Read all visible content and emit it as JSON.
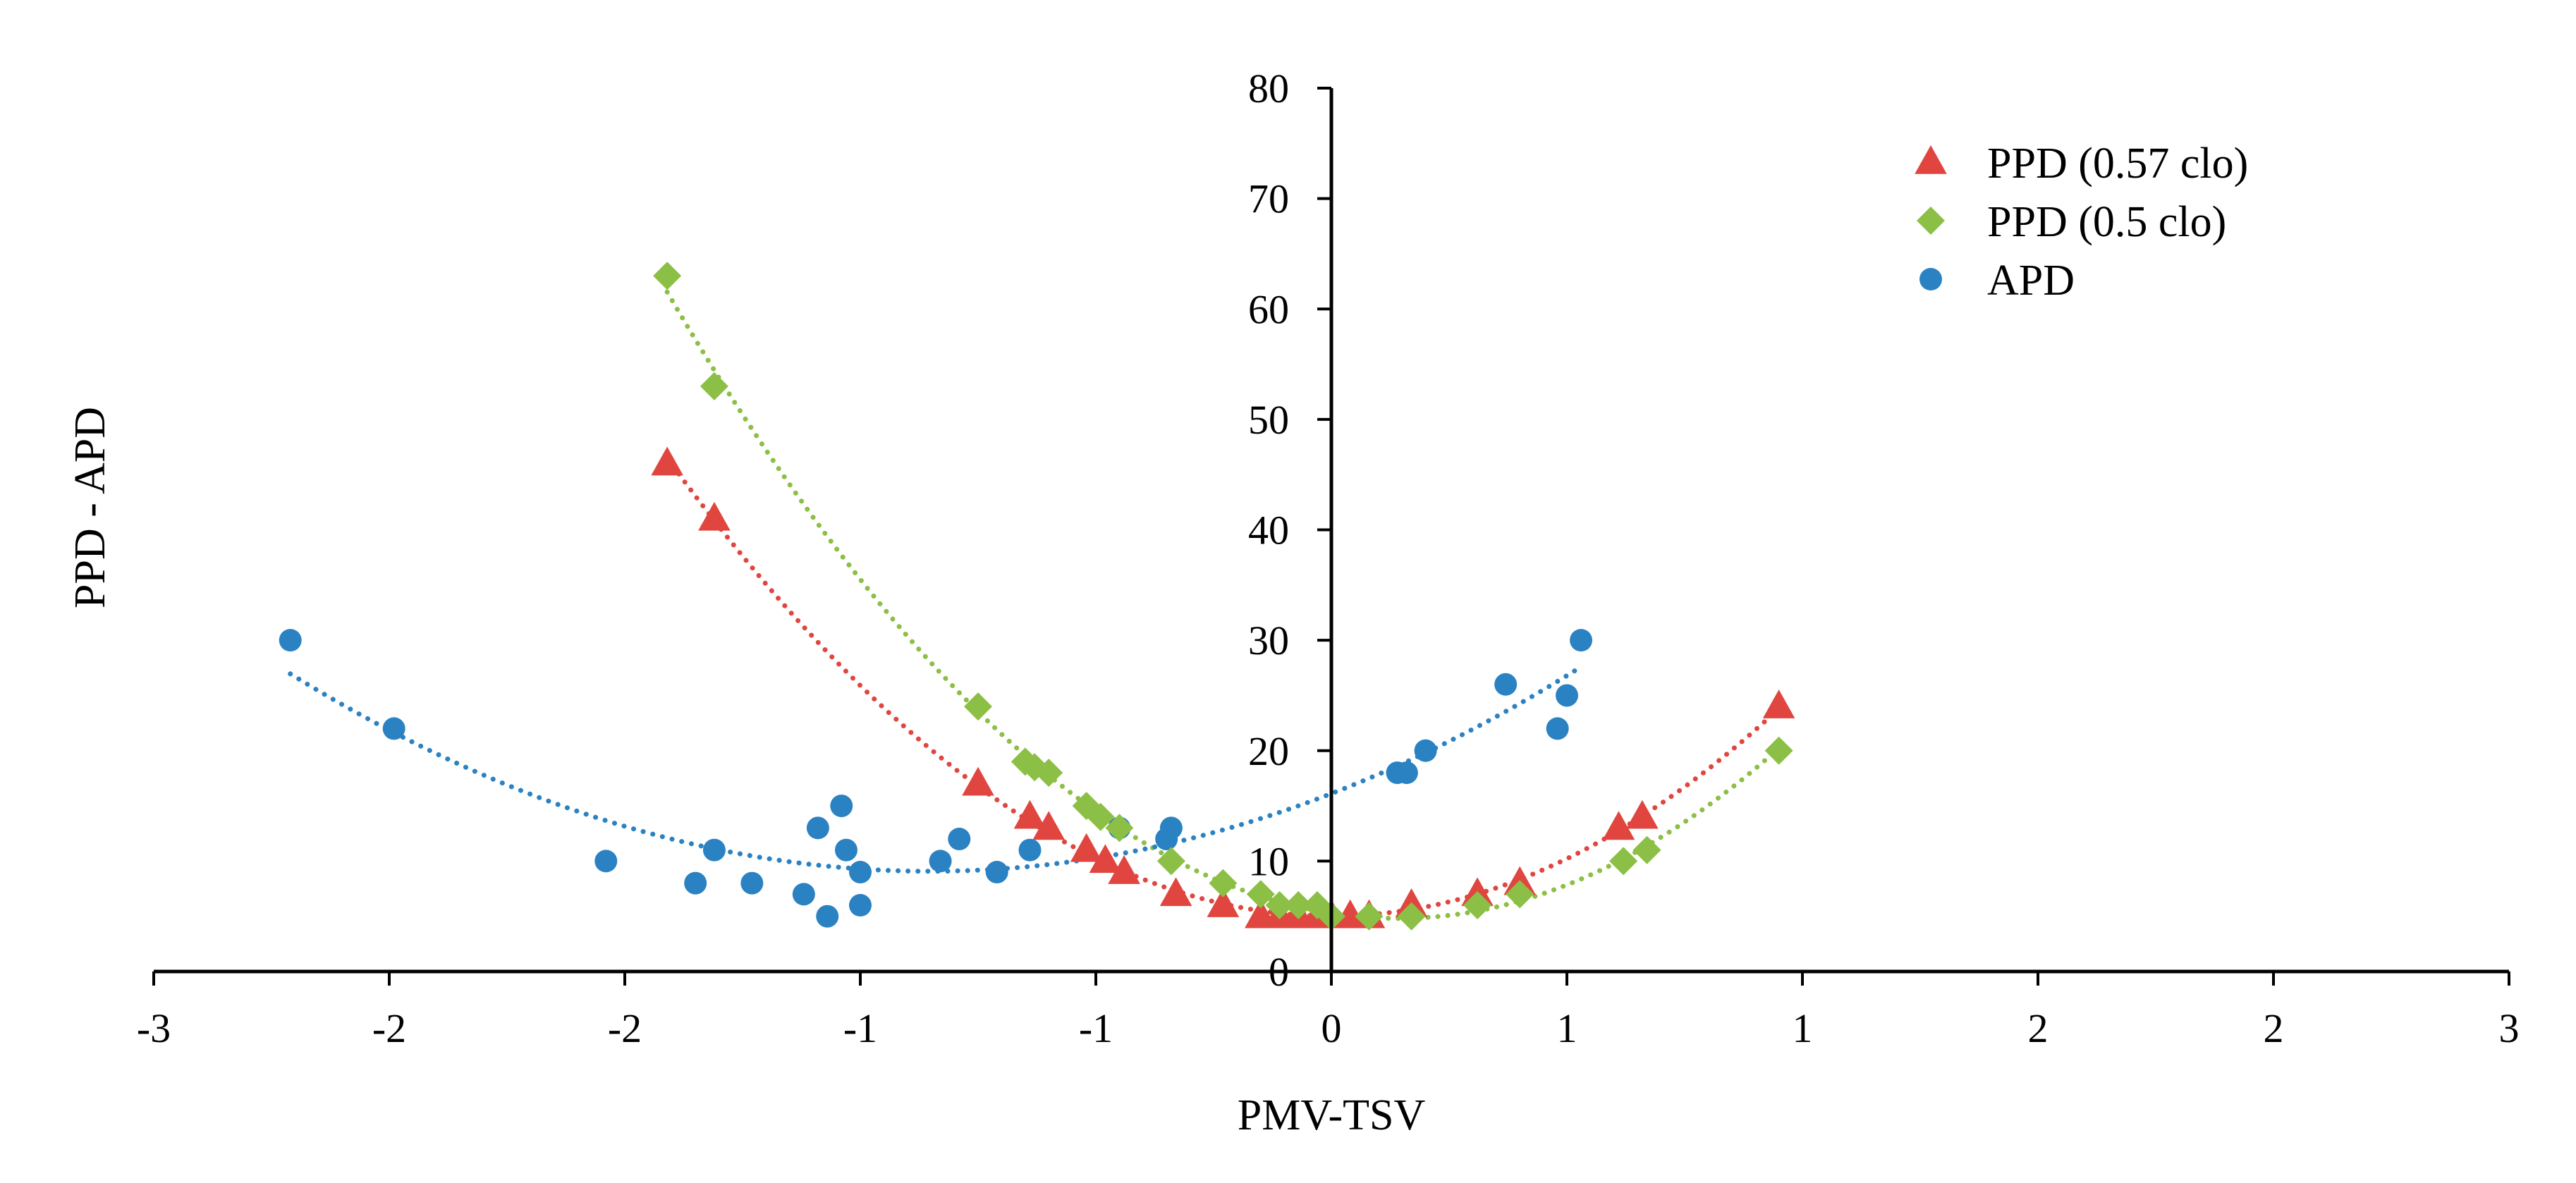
{
  "chart_data": {
    "type": "scatter",
    "title": "",
    "xlabel": "PMV-TSV",
    "ylabel": "PPD - APD",
    "xlim": [
      -2.5,
      2.5
    ],
    "ylim": [
      0,
      80
    ],
    "x_ticks": [
      -2.5,
      -2.0,
      -1.5,
      -1.0,
      -0.5,
      0.0,
      0.5,
      1.0,
      1.5,
      2.0,
      2.5
    ],
    "x_tick_labels": [
      "-3",
      "-2",
      "-2",
      "-1",
      "-1",
      "0",
      "1",
      "1",
      "2",
      "2",
      "3"
    ],
    "y_ticks": [
      0,
      10,
      20,
      30,
      40,
      50,
      60,
      70,
      80
    ],
    "y_tick_labels": [
      "0",
      "10",
      "20",
      "30",
      "40",
      "50",
      "60",
      "70",
      "80"
    ],
    "grid": false,
    "legend_position": "top-right",
    "series": [
      {
        "name": "PPD (0.57 clo)",
        "marker": "triangle",
        "color": "#e0463f",
        "trendline": "polynomial-2, dotted",
        "points": [
          [
            -1.41,
            46
          ],
          [
            -1.31,
            41
          ],
          [
            -0.75,
            17
          ],
          [
            -0.64,
            14
          ],
          [
            -0.6,
            13
          ],
          [
            -0.52,
            11
          ],
          [
            -0.48,
            10
          ],
          [
            -0.44,
            9
          ],
          [
            -0.33,
            7
          ],
          [
            -0.23,
            6
          ],
          [
            -0.15,
            5
          ],
          [
            -0.11,
            5
          ],
          [
            -0.07,
            5
          ],
          [
            -0.03,
            5
          ],
          [
            0.0,
            5
          ],
          [
            0.04,
            5
          ],
          [
            0.08,
            5
          ],
          [
            0.17,
            6
          ],
          [
            0.31,
            7
          ],
          [
            0.4,
            8
          ],
          [
            0.61,
            13
          ],
          [
            0.66,
            14
          ],
          [
            0.95,
            24
          ]
        ]
      },
      {
        "name": "PPD (0.5 clo)",
        "marker": "diamond",
        "color": "#8cbf45",
        "trendline": "polynomial-2, dotted",
        "points": [
          [
            -1.41,
            63
          ],
          [
            -1.31,
            53
          ],
          [
            -0.75,
            24
          ],
          [
            -0.65,
            19
          ],
          [
            -0.63,
            18.5
          ],
          [
            -0.6,
            18
          ],
          [
            -0.52,
            15
          ],
          [
            -0.49,
            14
          ],
          [
            -0.45,
            13
          ],
          [
            -0.34,
            10
          ],
          [
            -0.23,
            8
          ],
          [
            -0.15,
            7
          ],
          [
            -0.11,
            6
          ],
          [
            -0.07,
            6
          ],
          [
            -0.03,
            6
          ],
          [
            0.0,
            5
          ],
          [
            0.08,
            5
          ],
          [
            0.17,
            5
          ],
          [
            0.31,
            6
          ],
          [
            0.4,
            7
          ],
          [
            0.62,
            10
          ],
          [
            0.67,
            11
          ],
          [
            0.95,
            20
          ]
        ]
      },
      {
        "name": "APD",
        "marker": "circle",
        "color": "#2b82c2",
        "trendline": "polynomial-2, dotted",
        "points": [
          [
            -2.21,
            30
          ],
          [
            -1.99,
            22
          ],
          [
            -1.54,
            10
          ],
          [
            -1.35,
            8
          ],
          [
            -1.31,
            11
          ],
          [
            -1.23,
            8
          ],
          [
            -1.12,
            7
          ],
          [
            -1.09,
            13
          ],
          [
            -1.07,
            5
          ],
          [
            -1.04,
            15
          ],
          [
            -1.03,
            11
          ],
          [
            -1.0,
            9
          ],
          [
            -1.0,
            6
          ],
          [
            -0.83,
            10
          ],
          [
            -0.79,
            12
          ],
          [
            -0.71,
            9
          ],
          [
            -0.64,
            11
          ],
          [
            -0.45,
            13
          ],
          [
            -0.35,
            12
          ],
          [
            -0.34,
            13
          ],
          [
            0.14,
            18
          ],
          [
            0.16,
            18
          ],
          [
            0.2,
            20
          ],
          [
            0.37,
            26
          ],
          [
            0.48,
            22
          ],
          [
            0.5,
            25
          ],
          [
            0.53,
            30
          ]
        ]
      }
    ]
  }
}
